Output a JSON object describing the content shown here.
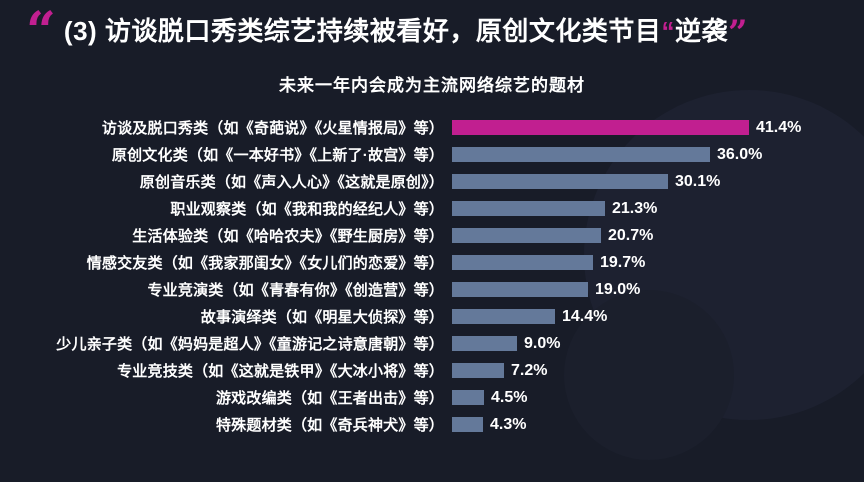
{
  "header": {
    "open_quote": "“",
    "title_main": "(3) 访谈脱口秀类综艺持续被看好，原创文化类节目",
    "highlight_quote_open": "“",
    "highlight_text": "逆袭",
    "close_quote": "”"
  },
  "colors": {
    "background": "#181c28",
    "accent": "#c11f90",
    "bar": "#64799a",
    "text": "#ffffff"
  },
  "chart_data": {
    "type": "bar",
    "orientation": "horizontal",
    "title": "未来一年内会成为主流网络综艺的题材",
    "categories": [
      "访谈及脱口秀类（如《奇葩说》《火星情报局》等）",
      "原创文化类（如《一本好书》《上新了·故宫》等）",
      "原创音乐类（如《声入人心》《这就是原创》）",
      "职业观察类（如《我和我的经纪人》等）",
      "生活体验类（如《哈哈农夫》《野生厨房》等）",
      "情感交友类（如《我家那闺女》《女儿们的恋爱》等）",
      "专业竞演类（如《青春有你》《创造营》等）",
      "故事演绎类（如《明星大侦探》等）",
      "少儿亲子类（如《妈妈是超人》《童游记之诗意唐朝》等）",
      "专业竞技类（如《这就是铁甲》《大冰小将》等）",
      "游戏改编类（如《王者出击》等）",
      "特殊题材类（如《奇兵神犬》等）"
    ],
    "values": [
      41.4,
      36.0,
      30.1,
      21.3,
      20.7,
      19.7,
      19.0,
      14.4,
      9.0,
      7.2,
      4.5,
      4.3
    ],
    "value_labels": [
      "41.4%",
      "36.0%",
      "30.1%",
      "21.3%",
      "20.7%",
      "19.7%",
      "19.0%",
      "14.4%",
      "9.0%",
      "7.2%",
      "4.5%",
      "4.3%"
    ],
    "xlim": [
      0,
      41.4
    ],
    "highlight_index": 0,
    "xlabel": "",
    "ylabel": "",
    "legend": "none",
    "grid": false
  }
}
